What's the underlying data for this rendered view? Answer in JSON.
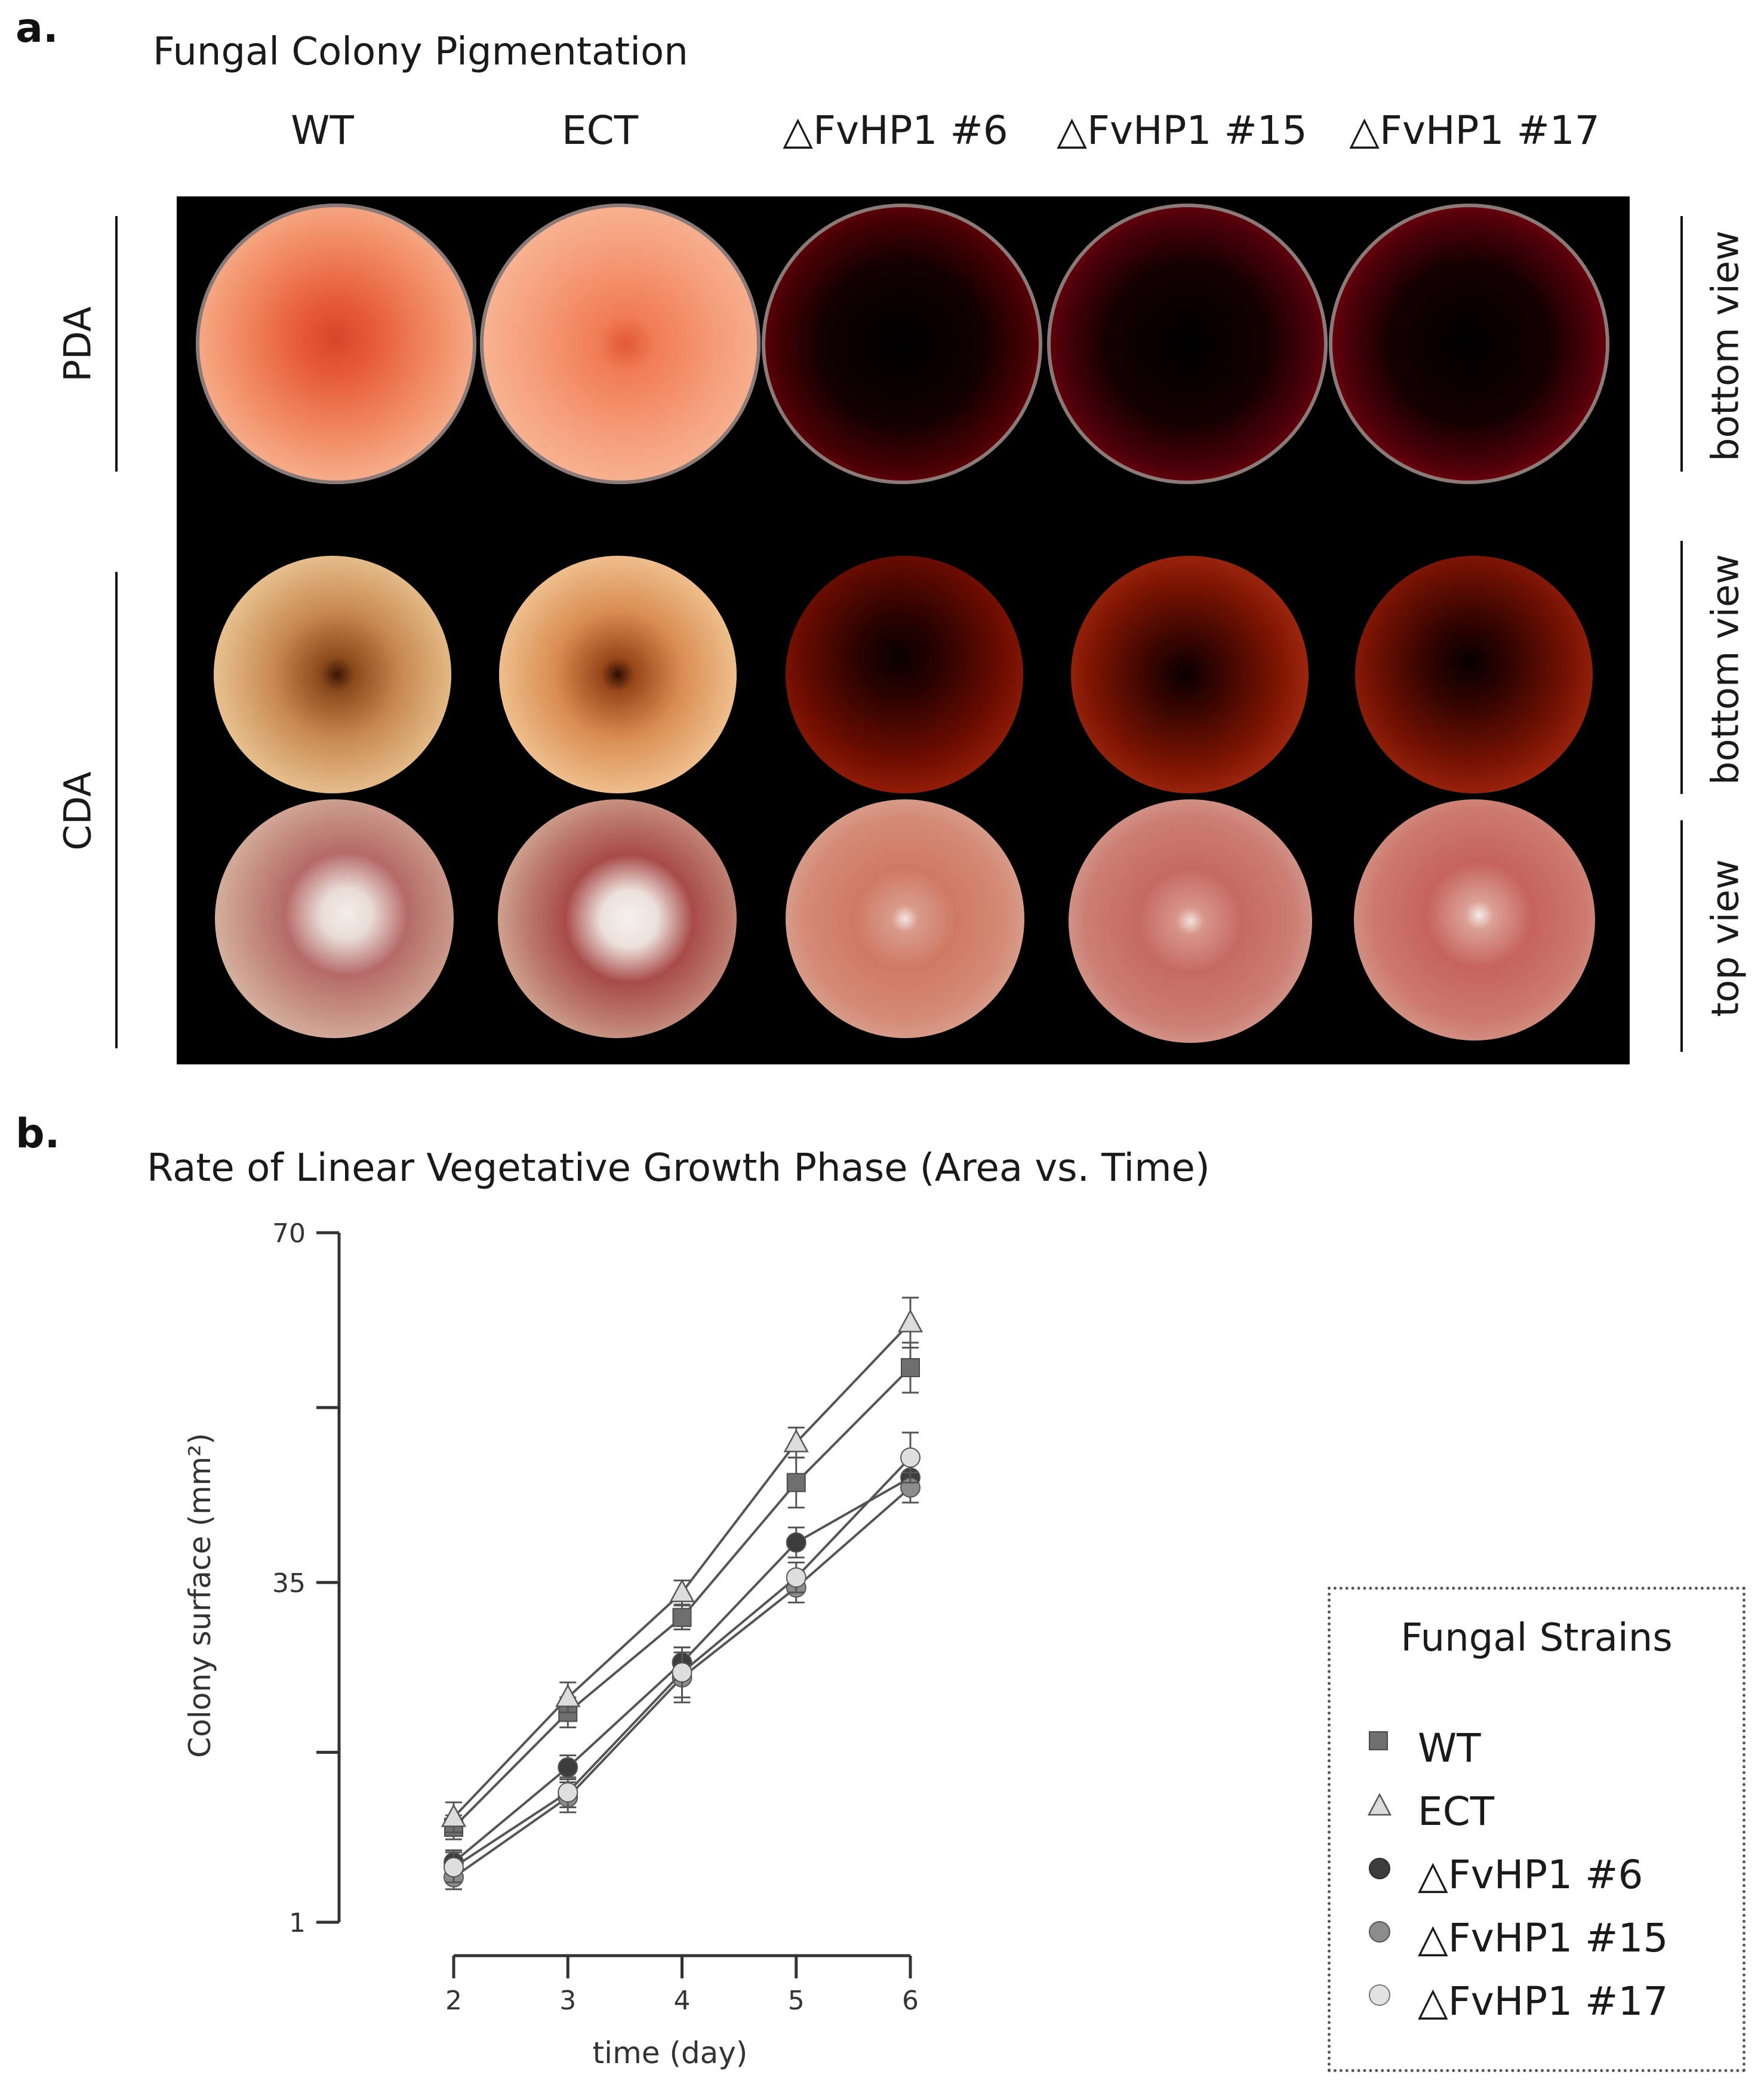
{
  "panel_a": {
    "letter": "a.",
    "title": "Fungal Colony Pigmentation",
    "columns": [
      "WT",
      "ECT",
      "△FvHP1 #6",
      "△FvHP1 #15",
      "△FvHP1 #17"
    ],
    "row_groups": [
      "PDA",
      "CDA"
    ],
    "view_labels": [
      "bottom view",
      "bottom view",
      "top view"
    ]
  },
  "panel_b": {
    "letter": "b.",
    "title": "Rate of Linear Vegetative Growth Phase (Area vs. Time)"
  },
  "chart_data": {
    "type": "line",
    "title": "Rate of Linear Vegetative Growth Phase (Area vs. Time)",
    "xlabel": "time (day)",
    "ylabel": "Colony surface (mm²)",
    "x": [
      2,
      3,
      4,
      5,
      6
    ],
    "xlim": [
      2,
      6
    ],
    "ylim": [
      1,
      70
    ],
    "yticks": [
      1,
      35,
      70
    ],
    "xticks": [
      2,
      3,
      4,
      5,
      6
    ],
    "grid": false,
    "legend": {
      "title": "Fungal Strains",
      "position": "right"
    },
    "series": [
      {
        "name": "WT",
        "marker": "square",
        "color": "#6f6f6f",
        "values": [
          10.5,
          22,
          31.5,
          45,
          56.5
        ],
        "error": [
          1.2,
          1.5,
          1.2,
          2.5,
          2.5
        ]
      },
      {
        "name": "ECT",
        "marker": "triangle",
        "color": "#dcdcdc",
        "values": [
          11.5,
          23.5,
          34,
          49,
          61
        ],
        "error": [
          1.5,
          1.5,
          1.2,
          1.5,
          2.5
        ]
      },
      {
        "name": "△FvHP1 #6",
        "marker": "circle",
        "color": "#3d3d3d",
        "values": [
          7,
          16.5,
          27,
          39,
          45.5
        ],
        "error": [
          1.2,
          1.2,
          1.5,
          1.5,
          1.5
        ]
      },
      {
        "name": "△FvHP1 #15",
        "marker": "circle",
        "color": "#8c8c8c",
        "values": [
          5.5,
          13.5,
          25.5,
          34.5,
          44.5
        ],
        "error": [
          1.2,
          1.5,
          2.5,
          1.5,
          1.5
        ]
      },
      {
        "name": "△FvHP1 #17",
        "marker": "circle",
        "color": "#dedede",
        "values": [
          6.5,
          14,
          26,
          35.5,
          47.5
        ],
        "error": [
          1.5,
          1.5,
          2.5,
          1.5,
          2.5
        ]
      }
    ]
  }
}
